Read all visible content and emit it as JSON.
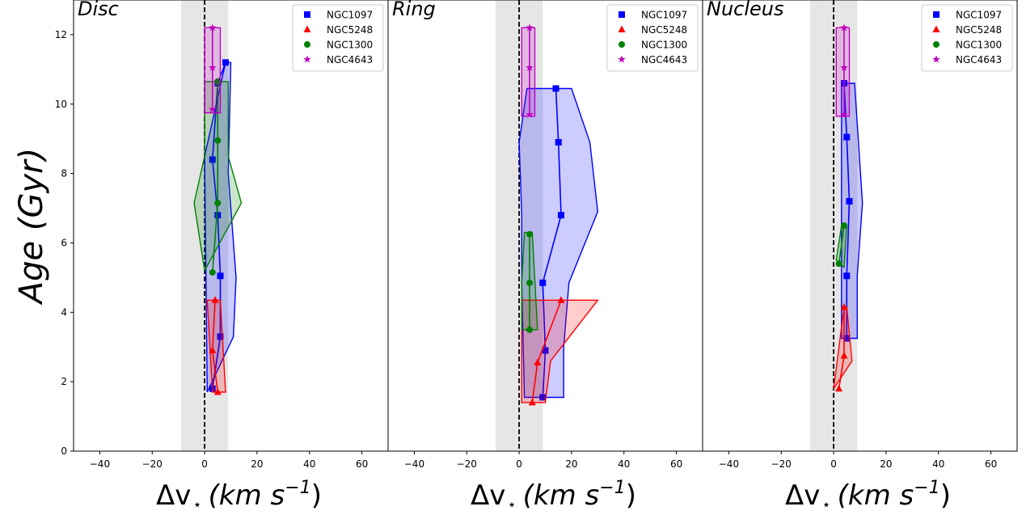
{
  "chart_data": {
    "type": "line",
    "ylabel": "Age (Gyr)",
    "xlabel_symbol": "Δv",
    "xlabel_sub": "⋆",
    "xlabel_units": "(km s",
    "xlabel_exp": "−1",
    "xlabel_close": ")",
    "xlim": [
      -50,
      70
    ],
    "ylim": [
      0,
      13
    ],
    "xticks": [
      -40,
      -20,
      0,
      20,
      40,
      60
    ],
    "xtick_labels": [
      "−40",
      "−20",
      "0",
      "20",
      "40",
      "60"
    ],
    "yticks": [
      0,
      2,
      4,
      6,
      8,
      10,
      12
    ],
    "ytick_labels": [
      "0",
      "2",
      "4",
      "6",
      "8",
      "10",
      "12"
    ],
    "shaded_band": [
      -9,
      9
    ],
    "vline_x": 0,
    "legend_position": "upper-right",
    "colors": {
      "NGC1097": "#0000ff",
      "NGC5248": "#ff0000",
      "NGC1300": "#008000",
      "NGC4643": "#bf00bf"
    },
    "markers": {
      "NGC1097": "square",
      "NGC5248": "triangle",
      "NGC1300": "circle",
      "NGC4643": "star"
    },
    "panels": [
      {
        "title": "Disc",
        "series": [
          {
            "name": "NGC1097",
            "x": [
              3,
              6,
              6,
              5,
              3,
              5,
              8
            ],
            "y": [
              1.8,
              3.3,
              5.05,
              6.8,
              8.4,
              10.6,
              11.2
            ],
            "band": [
              [
                1,
                1.7
              ],
              [
                11,
                3.3
              ],
              [
                12,
                5.0
              ],
              [
                9,
                8.0
              ],
              [
                10,
                11.2
              ],
              [
                8,
                11.2
              ],
              [
                0,
                8.5
              ],
              [
                1,
                1.7
              ]
            ]
          },
          {
            "name": "NGC5248",
            "x": [
              5,
              3,
              4
            ],
            "y": [
              1.7,
              2.9,
              4.35
            ],
            "band": [
              [
                1,
                4.35
              ],
              [
                6,
                4.35
              ],
              [
                8,
                1.7
              ],
              [
                3,
                1.7
              ],
              [
                1,
                4.35
              ]
            ]
          },
          {
            "name": "NGC1300",
            "x": [
              3,
              5,
              5,
              5
            ],
            "y": [
              5.15,
              7.15,
              8.95,
              10.65
            ],
            "band": [
              [
                0,
                5.2
              ],
              [
                14,
                7.15
              ],
              [
                9,
                8.5
              ],
              [
                9,
                10.65
              ],
              [
                0,
                10.65
              ],
              [
                0,
                8.5
              ],
              [
                -4,
                7.15
              ],
              [
                0,
                5.2
              ]
            ]
          },
          {
            "name": "NGC4643",
            "x": [
              3,
              3,
              3
            ],
            "y": [
              9.85,
              11.05,
              12.2
            ],
            "band": [
              [
                0,
                9.75
              ],
              [
                6,
                9.75
              ],
              [
                6,
                12.2
              ],
              [
                0,
                12.2
              ],
              [
                0,
                9.75
              ]
            ]
          }
        ]
      },
      {
        "title": "Ring",
        "series": [
          {
            "name": "NGC1097",
            "x": [
              9,
              10,
              9,
              16,
              15,
              14
            ],
            "y": [
              1.55,
              2.9,
              4.85,
              6.8,
              8.9,
              10.45
            ],
            "band": [
              [
                2,
                1.55
              ],
              [
                17,
                1.55
              ],
              [
                17,
                3.0
              ],
              [
                19,
                4.85
              ],
              [
                30,
                6.9
              ],
              [
                27,
                8.9
              ],
              [
                20,
                10.45
              ],
              [
                3,
                10.45
              ],
              [
                0,
                8.9
              ],
              [
                1,
                6.8
              ],
              [
                1,
                4.85
              ],
              [
                2,
                1.55
              ]
            ]
          },
          {
            "name": "NGC5248",
            "x": [
              5,
              7,
              16
            ],
            "y": [
              1.4,
              2.55,
              4.35
            ],
            "band": [
              [
                1,
                4.35
              ],
              [
                30,
                4.35
              ],
              [
                12,
                2.6
              ],
              [
                10,
                1.4
              ],
              [
                1,
                1.4
              ],
              [
                1,
                4.35
              ]
            ]
          },
          {
            "name": "NGC1300",
            "x": [
              4,
              4,
              4
            ],
            "y": [
              3.5,
              4.85,
              6.25
            ],
            "band": [
              [
                1,
                3.5
              ],
              [
                7,
                3.5
              ],
              [
                5,
                6.3
              ],
              [
                2,
                6.3
              ],
              [
                1,
                4.85
              ],
              [
                1,
                3.5
              ]
            ]
          },
          {
            "name": "NGC4643",
            "x": [
              4,
              4,
              4
            ],
            "y": [
              9.7,
              11.05,
              12.2
            ],
            "band": [
              [
                1,
                9.65
              ],
              [
                6,
                9.65
              ],
              [
                6,
                12.2
              ],
              [
                1,
                12.2
              ],
              [
                1,
                9.65
              ]
            ]
          }
        ]
      },
      {
        "title": "Nucleus",
        "series": [
          {
            "name": "NGC1097",
            "x": [
              5,
              5,
              6,
              5,
              4
            ],
            "y": [
              3.25,
              5.05,
              7.2,
              9.05,
              10.6
            ],
            "band": [
              [
                3,
                3.25
              ],
              [
                9,
                3.25
              ],
              [
                9,
                5.05
              ],
              [
                11,
                7.15
              ],
              [
                8,
                10.6
              ],
              [
                3,
                10.6
              ],
              [
                3,
                3.25
              ]
            ]
          },
          {
            "name": "NGC5248",
            "x": [
              2,
              4,
              4
            ],
            "y": [
              1.8,
              2.75,
              4.15
            ],
            "band": [
              [
                0,
                1.8
              ],
              [
                7,
                2.6
              ],
              [
                5,
                4.15
              ],
              [
                4,
                4.15
              ],
              [
                0,
                1.8
              ]
            ]
          },
          {
            "name": "NGC1300",
            "x": [
              2,
              4
            ],
            "y": [
              5.4,
              6.5
            ],
            "band": [
              [
                1,
                5.5
              ],
              [
                3,
                6.5
              ],
              [
                5,
                6.5
              ],
              [
                4,
                5.3
              ],
              [
                1,
                5.5
              ]
            ]
          },
          {
            "name": "NGC4643",
            "x": [
              4,
              4,
              4
            ],
            "y": [
              9.7,
              11.05,
              12.2
            ],
            "band": [
              [
                1,
                9.65
              ],
              [
                6,
                9.65
              ],
              [
                6,
                12.2
              ],
              [
                1,
                12.2
              ],
              [
                1,
                9.65
              ]
            ]
          }
        ]
      }
    ]
  }
}
